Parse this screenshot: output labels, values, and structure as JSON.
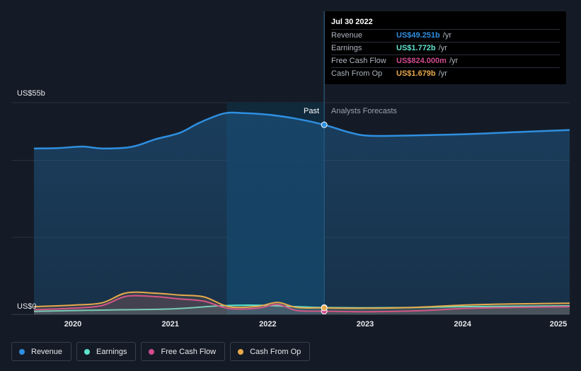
{
  "chart_data": {
    "type": "line",
    "y_max_label": "US$55b",
    "y_min_label": "US$0",
    "ylim": [
      0,
      55
    ],
    "xlim": [
      2019.6,
      2025.1
    ],
    "x_ticks": [
      {
        "label": "2020",
        "value": 2020
      },
      {
        "label": "2021",
        "value": 2021
      },
      {
        "label": "2022",
        "value": 2022
      },
      {
        "label": "2023",
        "value": 2023
      },
      {
        "label": "2024",
        "value": 2024
      },
      {
        "label": "2025",
        "value": 2025
      }
    ],
    "past_label": "Past",
    "forecast_label": "Analysts Forecasts",
    "past_region": [
      2021.58,
      2022.58
    ],
    "divider_x": 2022.58,
    "series": [
      {
        "name": "Revenue",
        "color": "#2f8fe0",
        "fill": true,
        "points": [
          [
            2019.6,
            43.1
          ],
          [
            2019.85,
            43.2
          ],
          [
            2020.1,
            43.6
          ],
          [
            2020.3,
            43.1
          ],
          [
            2020.6,
            43.5
          ],
          [
            2020.85,
            45.5
          ],
          [
            2021.1,
            47.2
          ],
          [
            2021.3,
            49.8
          ],
          [
            2021.55,
            52.2
          ],
          [
            2021.75,
            52.3
          ],
          [
            2022.0,
            51.9
          ],
          [
            2022.3,
            50.8
          ],
          [
            2022.58,
            49.251
          ],
          [
            2022.85,
            47.2
          ],
          [
            2023.05,
            46.4
          ],
          [
            2023.5,
            46.5
          ],
          [
            2024.0,
            46.8
          ],
          [
            2024.5,
            47.3
          ],
          [
            2025.1,
            47.9
          ]
        ]
      },
      {
        "name": "Earnings",
        "color": "#5ee3cc",
        "fill": false,
        "points": [
          [
            2019.6,
            0.8
          ],
          [
            2020.0,
            1.0
          ],
          [
            2020.5,
            1.2
          ],
          [
            2021.0,
            1.4
          ],
          [
            2021.5,
            2.2
          ],
          [
            2021.8,
            2.4
          ],
          [
            2022.0,
            2.3
          ],
          [
            2022.3,
            2.0
          ],
          [
            2022.58,
            1.772
          ],
          [
            2023.0,
            1.7
          ],
          [
            2023.5,
            1.8
          ],
          [
            2024.0,
            2.0
          ],
          [
            2024.5,
            2.1
          ],
          [
            2025.1,
            2.2
          ]
        ]
      },
      {
        "name": "Free Cash Flow",
        "color": "#d14b8f",
        "fill": false,
        "points": [
          [
            2019.6,
            1.2
          ],
          [
            2020.0,
            1.6
          ],
          [
            2020.3,
            2.3
          ],
          [
            2020.55,
            4.7
          ],
          [
            2020.85,
            4.6
          ],
          [
            2021.1,
            4.0
          ],
          [
            2021.35,
            3.4
          ],
          [
            2021.6,
            1.5
          ],
          [
            2021.9,
            1.6
          ],
          [
            2022.1,
            2.6
          ],
          [
            2022.3,
            1.0
          ],
          [
            2022.58,
            0.824
          ],
          [
            2023.0,
            0.7
          ],
          [
            2023.5,
            0.9
          ],
          [
            2024.0,
            1.5
          ],
          [
            2024.5,
            1.8
          ],
          [
            2025.1,
            2.0
          ]
        ]
      },
      {
        "name": "Cash From Op",
        "color": "#e8a94c",
        "fill": false,
        "points": [
          [
            2019.6,
            2.0
          ],
          [
            2020.0,
            2.4
          ],
          [
            2020.3,
            3.0
          ],
          [
            2020.55,
            5.6
          ],
          [
            2020.85,
            5.5
          ],
          [
            2021.1,
            5.0
          ],
          [
            2021.35,
            4.5
          ],
          [
            2021.6,
            2.0
          ],
          [
            2021.9,
            2.1
          ],
          [
            2022.1,
            3.1
          ],
          [
            2022.3,
            1.8
          ],
          [
            2022.58,
            1.679
          ],
          [
            2023.0,
            1.6
          ],
          [
            2023.5,
            1.8
          ],
          [
            2024.0,
            2.4
          ],
          [
            2024.5,
            2.7
          ],
          [
            2025.1,
            2.9
          ]
        ]
      }
    ]
  },
  "tooltip": {
    "date": "Jul 30 2022",
    "rows": [
      {
        "name": "Revenue",
        "value": "US$49.251b",
        "unit": "/yr",
        "color": "#2f8fe0"
      },
      {
        "name": "Earnings",
        "value": "US$1.772b",
        "unit": "/yr",
        "color": "#5ee3cc"
      },
      {
        "name": "Free Cash Flow",
        "value": "US$824.000m",
        "unit": "/yr",
        "color": "#d14b8f"
      },
      {
        "name": "Cash From Op",
        "value": "US$1.679b",
        "unit": "/yr",
        "color": "#e8a94c"
      }
    ]
  },
  "legend": [
    {
      "label": "Revenue",
      "color": "#2f8fe0"
    },
    {
      "label": "Earnings",
      "color": "#5ee3cc"
    },
    {
      "label": "Free Cash Flow",
      "color": "#d14b8f"
    },
    {
      "label": "Cash From Op",
      "color": "#e8a94c"
    }
  ]
}
